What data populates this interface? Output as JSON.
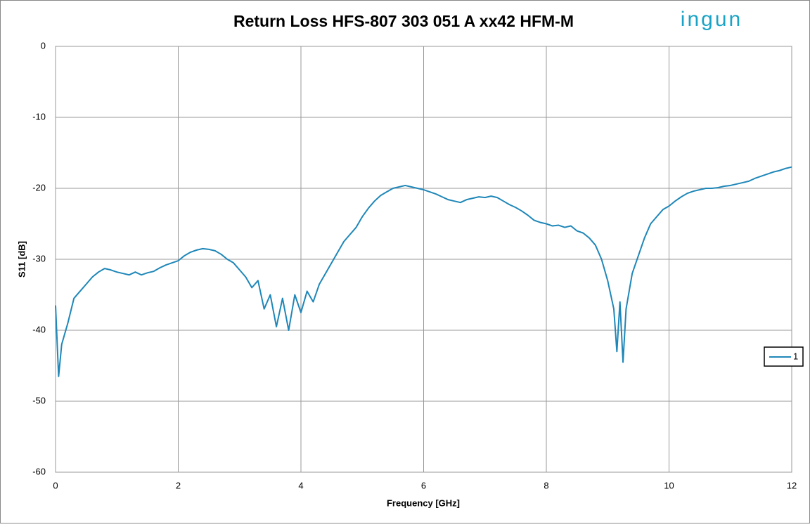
{
  "logo": "ingun",
  "chart_data": {
    "type": "line",
    "title": "Return Loss HFS-807 303 051 A xx42 HFM-M",
    "x_label": "Frequency [GHz]",
    "y_label": "S11 [dB]",
    "xlim": [
      0,
      12
    ],
    "xticks": [
      0,
      2,
      4,
      6,
      8,
      10,
      12
    ],
    "ylim": [
      -60,
      0
    ],
    "yticks": [
      0,
      -10,
      -20,
      -30,
      -40,
      -50,
      -60
    ],
    "grid": true,
    "legend": "right",
    "x": [
      0,
      0.05,
      0.1,
      0.2,
      0.3,
      0.4,
      0.5,
      0.6,
      0.7,
      0.8,
      0.9,
      1.0,
      1.1,
      1.2,
      1.3,
      1.4,
      1.5,
      1.6,
      1.7,
      1.8,
      1.9,
      2.0,
      2.1,
      2.2,
      2.3,
      2.4,
      2.5,
      2.6,
      2.7,
      2.8,
      2.9,
      3.0,
      3.1,
      3.2,
      3.3,
      3.4,
      3.5,
      3.6,
      3.7,
      3.8,
      3.9,
      4.0,
      4.1,
      4.2,
      4.3,
      4.4,
      4.5,
      4.6,
      4.7,
      4.8,
      4.9,
      5.0,
      5.1,
      5.2,
      5.3,
      5.4,
      5.5,
      5.6,
      5.7,
      5.8,
      5.9,
      6.0,
      6.1,
      6.2,
      6.3,
      6.4,
      6.5,
      6.6,
      6.7,
      6.8,
      6.9,
      7.0,
      7.1,
      7.2,
      7.3,
      7.4,
      7.5,
      7.6,
      7.7,
      7.8,
      7.9,
      8.0,
      8.1,
      8.2,
      8.3,
      8.4,
      8.5,
      8.6,
      8.7,
      8.8,
      8.9,
      9.0,
      9.1,
      9.15,
      9.2,
      9.25,
      9.3,
      9.4,
      9.5,
      9.6,
      9.7,
      9.8,
      9.9,
      10.0,
      10.1,
      10.2,
      10.3,
      10.4,
      10.5,
      10.6,
      10.7,
      10.8,
      10.9,
      11.0,
      11.1,
      11.2,
      11.3,
      11.4,
      11.5,
      11.6,
      11.7,
      11.8,
      11.9,
      12.0
    ],
    "series": [
      {
        "name": "1",
        "color": "#1f87b8",
        "values": [
          -36.5,
          -46.5,
          -42,
          -39,
          -35.5,
          -34.5,
          -33.5,
          -32.5,
          -31.8,
          -31.3,
          -31.5,
          -31.8,
          -32,
          -32.2,
          -31.8,
          -32.2,
          -31.9,
          -31.7,
          -31.2,
          -30.8,
          -30.5,
          -30.2,
          -29.5,
          -29,
          -28.7,
          -28.5,
          -28.6,
          -28.8,
          -29.3,
          -30,
          -30.5,
          -31.5,
          -32.5,
          -34,
          -33,
          -37,
          -35,
          -39.5,
          -35.5,
          -40,
          -35,
          -37.5,
          -34.5,
          -36,
          -33.5,
          -32,
          -30.5,
          -29,
          -27.5,
          -26.5,
          -25.5,
          -24,
          -22.8,
          -21.8,
          -21,
          -20.5,
          -20,
          -19.8,
          -19.6,
          -19.8,
          -20,
          -20.2,
          -20.5,
          -20.8,
          -21.2,
          -21.6,
          -21.8,
          -22,
          -21.6,
          -21.4,
          -21.2,
          -21.3,
          -21.1,
          -21.3,
          -21.8,
          -22.3,
          -22.7,
          -23.2,
          -23.8,
          -24.5,
          -24.8,
          -25,
          -25.3,
          -25.2,
          -25.5,
          -25.3,
          -26,
          -26.3,
          -27,
          -28,
          -30,
          -33,
          -37,
          -43,
          -36,
          -44.5,
          -37,
          -32,
          -29.5,
          -27,
          -25,
          -24,
          -23,
          -22.5,
          -21.8,
          -21.2,
          -20.7,
          -20.4,
          -20.2,
          -20,
          -20,
          -19.9,
          -19.7,
          -19.6,
          -19.4,
          -19.2,
          -19,
          -18.6,
          -18.3,
          -18,
          -17.7,
          -17.5,
          -17.2,
          -17
        ]
      }
    ]
  }
}
